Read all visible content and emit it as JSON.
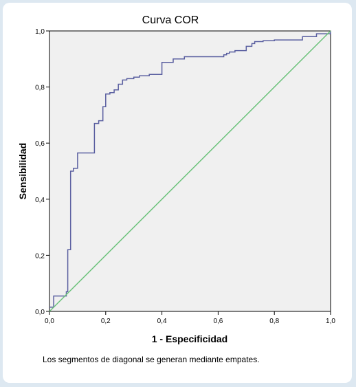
{
  "chart_data": {
    "type": "line",
    "title": "Curva COR",
    "xlabel": "1 - Especificidad",
    "ylabel": "Sensibilidad",
    "xlim": [
      0,
      1
    ],
    "ylim": [
      0,
      1
    ],
    "x_ticks": [
      "0,0",
      "0,2",
      "0,4",
      "0,6",
      "0,8",
      "1,0"
    ],
    "y_ticks": [
      "0,0",
      "0,2",
      "0,4",
      "0,6",
      "0,8",
      "1,0"
    ],
    "grid": false,
    "series": [
      {
        "color": "#5a5fa0",
        "step": true,
        "x": [
          0,
          0.015,
          0.06,
          0.065,
          0.075,
          0.085,
          0.1,
          0.115,
          0.16,
          0.175,
          0.19,
          0.2,
          0.215,
          0.23,
          0.245,
          0.26,
          0.275,
          0.3,
          0.32,
          0.355,
          0.4,
          0.44,
          0.48,
          0.62,
          0.63,
          0.64,
          0.66,
          0.7,
          0.72,
          0.73,
          0.76,
          0.78,
          0.8,
          0.9,
          0.95,
          1.0
        ],
        "y": [
          0.015,
          0.055,
          0.07,
          0.22,
          0.5,
          0.51,
          0.565,
          0.565,
          0.67,
          0.68,
          0.73,
          0.775,
          0.78,
          0.79,
          0.81,
          0.825,
          0.83,
          0.835,
          0.84,
          0.845,
          0.888,
          0.9,
          0.908,
          0.915,
          0.92,
          0.925,
          0.93,
          0.945,
          0.955,
          0.962,
          0.965,
          0.965,
          0.968,
          0.98,
          0.99,
          1.0
        ]
      },
      {
        "color": "#6ac27a",
        "step": false,
        "x": [
          0,
          1
        ],
        "y": [
          0,
          1
        ]
      }
    ]
  },
  "footnote": "Los segmentos de diagonal se generan mediante empates."
}
